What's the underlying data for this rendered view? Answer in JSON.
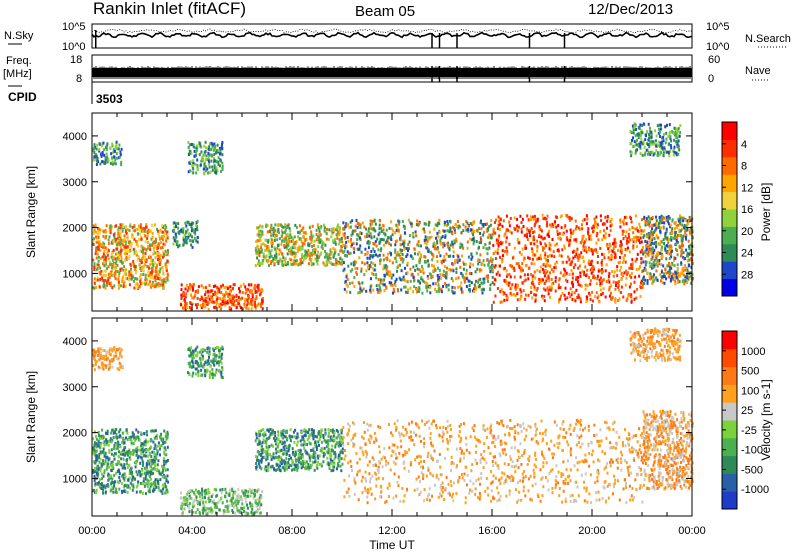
{
  "header": {
    "station": "Rankin Inlet (fitACF)",
    "beam": "Beam 05",
    "date": "12/Dec/2013"
  },
  "chart_data": [
    {
      "type": "line",
      "panel": "noise",
      "left_label": "N.Sky",
      "right_label": "N.Search",
      "left_ticks": [
        "10^5",
        "10^0"
      ],
      "right_ticks": [
        "10^5",
        "10^0"
      ],
      "x_range_hours": [
        0,
        24
      ],
      "series": [
        {
          "name": "N.Sky",
          "style": "solid"
        },
        {
          "name": "N.Search",
          "style": "dotted"
        }
      ],
      "dropout_times_hours": [
        13.6,
        13.9,
        14.6,
        17.5,
        18.9
      ]
    },
    {
      "type": "line",
      "panel": "frequency / nave",
      "left_label_1": "Freq.",
      "left_label_2": "[MHz]",
      "right_label": "Nave",
      "left_ticks": [
        "18",
        "8"
      ],
      "right_ticks": [
        "60",
        "0"
      ],
      "x_range_hours": [
        0,
        24
      ]
    },
    {
      "type": "text",
      "panel": "cpid",
      "label": "CPID",
      "value": "3503"
    },
    {
      "type": "heatmap",
      "panel": "power",
      "ylabel": "Slant Range [km]",
      "xlabel": "",
      "ylim": [
        180,
        4500
      ],
      "yticks": [
        "1000",
        "2000",
        "3000",
        "4000"
      ],
      "x_range_hours": [
        0,
        24
      ],
      "colorbar_label": "Power [dB]",
      "colorbar_ticks": [
        "4",
        "8",
        "12",
        "16",
        "20",
        "24",
        "28"
      ],
      "colorbar_colors": [
        "#0000e6",
        "#1e46c8",
        "#2e8b57",
        "#4cae52",
        "#8fd23c",
        "#f0d23c",
        "#ffa500",
        "#ff6a00",
        "#ff2e00",
        "#ff0000"
      ],
      "scatter_regions": [
        {
          "t0": 0.0,
          "t1": 3.0,
          "r0": 700,
          "r1": 2100,
          "dominant": "orange-red"
        },
        {
          "t0": 3.5,
          "t1": 6.8,
          "r0": 250,
          "r1": 800,
          "dominant": "red"
        },
        {
          "t0": 3.2,
          "t1": 4.2,
          "r0": 1600,
          "r1": 2200,
          "dominant": "green"
        },
        {
          "t0": 6.5,
          "t1": 10.0,
          "r0": 1200,
          "r1": 2100,
          "dominant": "orange-green"
        },
        {
          "t0": 10.0,
          "t1": 16.0,
          "r0": 600,
          "r1": 2200,
          "dominant": "green-orange"
        },
        {
          "t0": 16.0,
          "t1": 22.0,
          "r0": 400,
          "r1": 2300,
          "dominant": "red"
        },
        {
          "t0": 22.0,
          "t1": 24.0,
          "r0": 800,
          "r1": 2300,
          "dominant": "green-orange"
        },
        {
          "t0": 0.0,
          "t1": 1.2,
          "r0": 3400,
          "r1": 3900,
          "dominant": "green"
        },
        {
          "t0": 3.8,
          "t1": 5.2,
          "r0": 3200,
          "r1": 3900,
          "dominant": "green"
        },
        {
          "t0": 21.5,
          "t1": 23.5,
          "r0": 3600,
          "r1": 4300,
          "dominant": "green"
        }
      ]
    },
    {
      "type": "heatmap",
      "panel": "velocity",
      "ylabel": "Slant Range [km]",
      "xlabel": "Time UT",
      "ylim": [
        180,
        4500
      ],
      "yticks": [
        "1000",
        "2000",
        "3000",
        "4000"
      ],
      "x_ticks": [
        "00:00",
        "04:00",
        "08:00",
        "12:00",
        "16:00",
        "20:00",
        "00:00"
      ],
      "x_range_hours": [
        0,
        24
      ],
      "colorbar_label": "Velocity [m s-1]",
      "colorbar_ticks": [
        "1000",
        "500",
        "100",
        "25",
        "-25",
        "-100",
        "-500",
        "-1000"
      ],
      "colorbar_colors": [
        "#1e3cc8",
        "#2860a8",
        "#2e8b57",
        "#4caf50",
        "#7cd23c",
        "#c8c8c8",
        "#ffa01e",
        "#ff7a14",
        "#ff4a00",
        "#ff0000"
      ],
      "scatter_regions": [
        {
          "t0": 0.0,
          "t1": 3.0,
          "r0": 700,
          "r1": 2100,
          "dominant": "green"
        },
        {
          "t0": 3.5,
          "t1": 6.8,
          "r0": 250,
          "r1": 800,
          "dominant": "green-gray"
        },
        {
          "t0": 6.5,
          "t1": 10.0,
          "r0": 1200,
          "r1": 2100,
          "dominant": "green"
        },
        {
          "t0": 10.0,
          "t1": 22.0,
          "r0": 500,
          "r1": 2300,
          "dominant": "orange"
        },
        {
          "t0": 22.0,
          "t1": 24.0,
          "r0": 800,
          "r1": 2500,
          "dominant": "orange-gray"
        },
        {
          "t0": 0.0,
          "t1": 1.2,
          "r0": 3400,
          "r1": 3900,
          "dominant": "orange"
        },
        {
          "t0": 3.8,
          "t1": 5.2,
          "r0": 3200,
          "r1": 3900,
          "dominant": "green"
        },
        {
          "t0": 21.5,
          "t1": 23.5,
          "r0": 3600,
          "r1": 4300,
          "dominant": "orange"
        }
      ]
    }
  ]
}
